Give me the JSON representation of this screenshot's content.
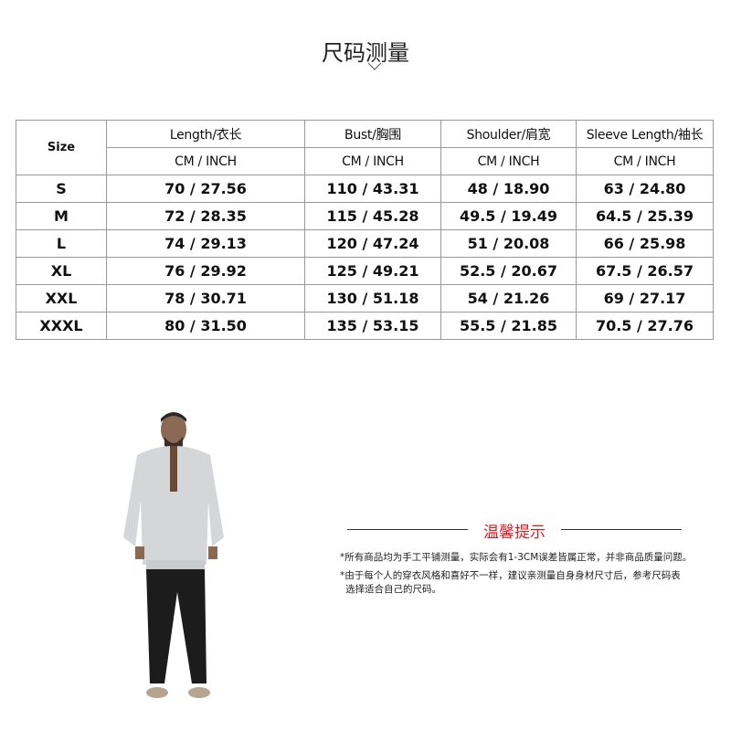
{
  "title": "尺码测量",
  "table": {
    "size_header": "Size",
    "columns": [
      "Length/衣长",
      "Bust/胸围",
      "Shoulder/肩宽",
      "Sleeve Length/袖长"
    ],
    "units": [
      "CM  /  INCH",
      "CM  /  INCH",
      "CM  /  INCH",
      "CM  /  INCH"
    ],
    "rows": [
      [
        "S",
        "70 / 27.56",
        "110 / 43.31",
        "48 / 18.90",
        "63 / 24.80"
      ],
      [
        "M",
        "72 / 28.35",
        "115 / 45.28",
        "49.5 / 19.49",
        "64.5 / 25.39"
      ],
      [
        "L",
        "74 / 29.13",
        "120 / 47.24",
        "51 / 20.08",
        "66 / 25.98"
      ],
      [
        "XL",
        "76 / 29.92",
        "125 / 49.21",
        "52.5 / 20.67",
        "67.5 / 26.57"
      ],
      [
        "XXL",
        "78 / 30.71",
        "130 / 51.18",
        "54 / 21.26",
        "69 / 27.17"
      ],
      [
        "XXXL",
        "80 / 31.50",
        "135 / 53.15",
        "55.5 / 21.85",
        "70.5 / 27.76"
      ]
    ]
  },
  "tips": {
    "title": "温馨提示",
    "accent": "#e0191e",
    "lines": [
      "*所有商品均为手工平铺测量，实际会有1-3CM误差皆属正常，并非商品质量问题。",
      "*由于每个人的穿衣风格和喜好不一样，建议亲测量自身身材尺寸后，参考尺码表",
      "选择适合自己的尺码。"
    ]
  }
}
